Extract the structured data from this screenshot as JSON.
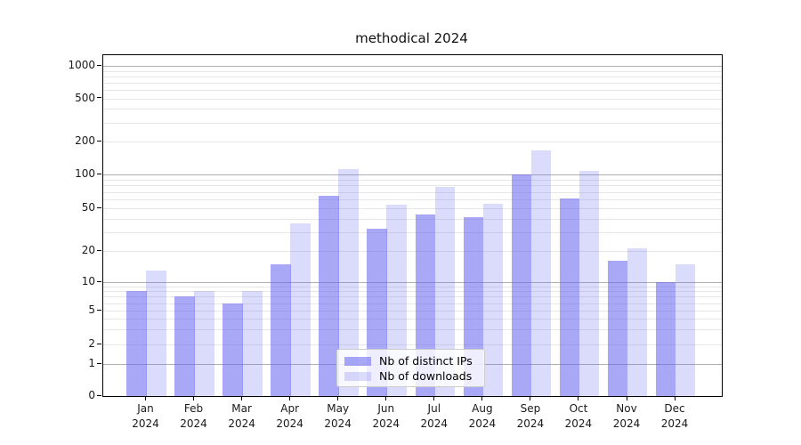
{
  "title": "methodical 2024",
  "chart_data": {
    "type": "bar",
    "title": "methodical 2024",
    "categories": [
      "Jan",
      "Feb",
      "Mar",
      "Apr",
      "May",
      "Jun",
      "Jul",
      "Aug",
      "Sep",
      "Oct",
      "Nov",
      "Dec"
    ],
    "x_year": "2024",
    "series": [
      {
        "name": "Nb of distinct IPs",
        "values": [
          8,
          7,
          6,
          15,
          64,
          32,
          44,
          41,
          100,
          61,
          16,
          10
        ]
      },
      {
        "name": "Nb of downloads",
        "values": [
          13,
          8,
          8,
          36,
          112,
          54,
          78,
          55,
          165,
          108,
          21,
          15
        ]
      }
    ],
    "yscale": "symlog",
    "ytick_values": [
      0,
      1,
      2,
      5,
      10,
      20,
      50,
      100,
      200,
      500,
      1000
    ],
    "ytick_labels": [
      "0",
      "1",
      "2",
      "5",
      "10",
      "20",
      "50",
      "100",
      "200",
      "500",
      "1000"
    ],
    "ylim": [
      0,
      1400
    ],
    "grid": true,
    "legend_position": "lower center",
    "xlabel": "",
    "ylabel": ""
  },
  "legend": {
    "items": [
      {
        "label": "Nb of distinct IPs"
      },
      {
        "label": "Nb of downloads"
      }
    ]
  },
  "colors": {
    "bar_dark": "rgba(100,100,240,0.56)",
    "bar_light": "rgba(100,100,240,0.23)",
    "grid_major": "#b0b0b0",
    "grid_minor": "#e7e7e7",
    "spine": "#000000",
    "text": "#1a1a1a",
    "legend_border": "#cccccc"
  }
}
